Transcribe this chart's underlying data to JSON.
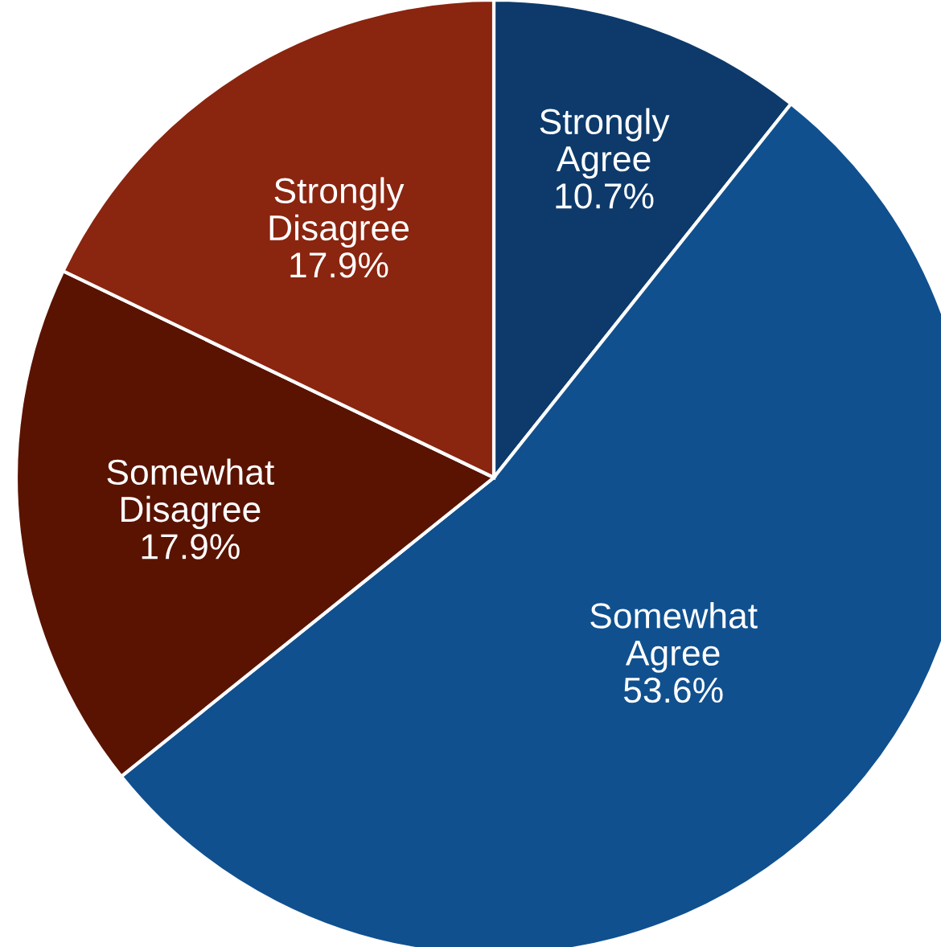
{
  "chart_data": {
    "type": "pie",
    "categories": [
      "Strongly\nAgree",
      "Somewhat\nAgree",
      "Somewhat\nDisagree",
      "Strongly\nDisagree"
    ],
    "values": [
      10.7,
      53.6,
      17.9,
      17.9
    ],
    "value_labels": [
      "10.7%",
      "53.6%",
      "17.9%",
      "17.9%"
    ],
    "colors": [
      "#0d3a6b",
      "#10508f",
      "#5a1300",
      "#8a2510"
    ],
    "legend": false
  }
}
